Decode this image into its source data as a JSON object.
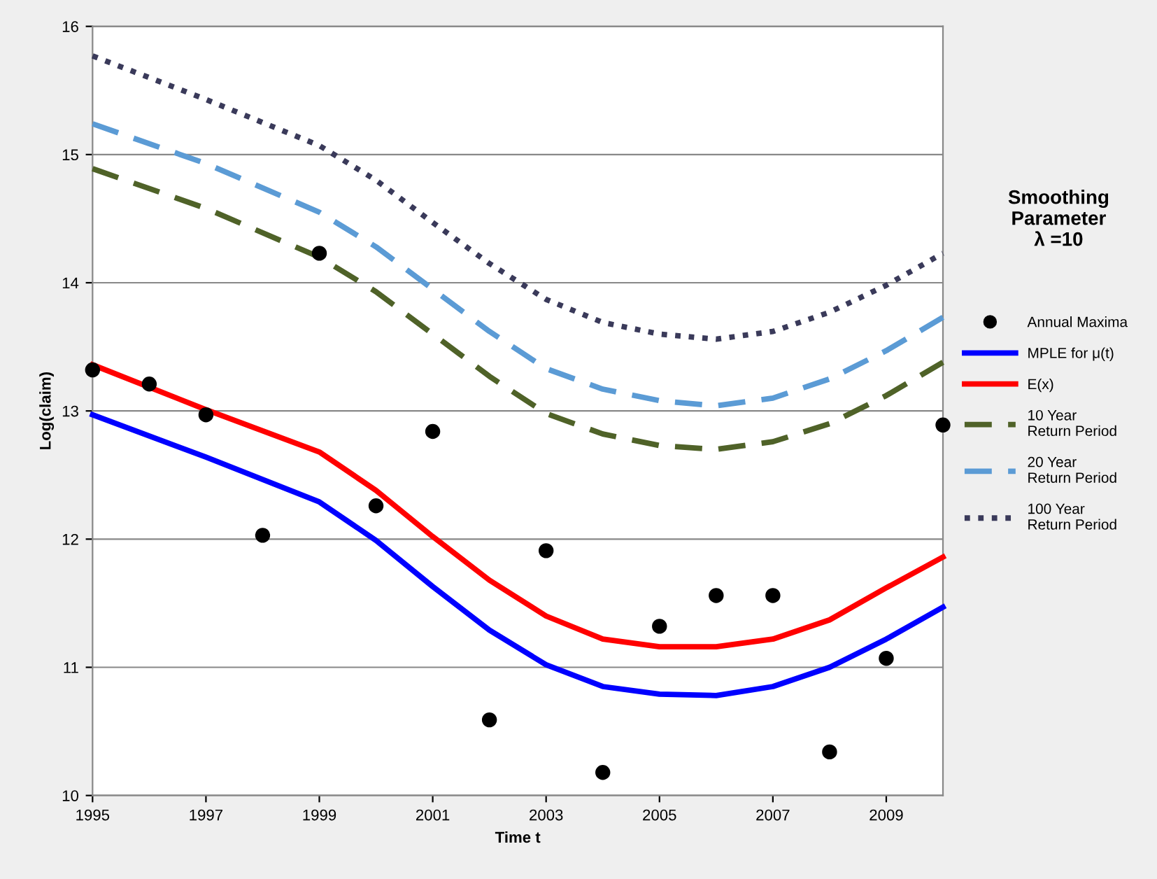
{
  "chart_data": {
    "type": "line",
    "xlabel": "Time t",
    "ylabel": "Log(claim)",
    "annotations": [
      "Smoothing\nParameter\nλ =10"
    ],
    "xlim": [
      1995,
      2010
    ],
    "xticks": [
      1995,
      1997,
      1999,
      2001,
      2003,
      2005,
      2007,
      2009
    ],
    "ylim": [
      10,
      16
    ],
    "yticks": [
      10,
      11,
      12,
      13,
      14,
      15,
      16
    ],
    "grid": "y",
    "legend": "right",
    "series": [
      {
        "name": "Annual Maxima",
        "type": "scatter",
        "marker": "circle",
        "color": "#000000",
        "x": [
          1995,
          1996,
          1997,
          1998,
          1999,
          2000,
          2001,
          2002,
          2003,
          2004,
          2005,
          2006,
          2007,
          2008,
          2009,
          2010
        ],
        "values": [
          13.32,
          13.21,
          12.97,
          12.03,
          14.23,
          12.26,
          12.84,
          10.59,
          11.91,
          10.18,
          11.32,
          11.56,
          11.56,
          10.34,
          11.07,
          12.89
        ]
      },
      {
        "name": "MPLE for μ(t)",
        "line_style": "solid",
        "color": "#0000ff",
        "x": [
          1995,
          1997,
          1999,
          2000,
          2001,
          2002,
          2003,
          2004,
          2005,
          2006,
          2007,
          2008,
          2009,
          2010
        ],
        "values": [
          12.97,
          12.64,
          12.29,
          11.99,
          11.63,
          11.29,
          11.02,
          10.85,
          10.79,
          10.78,
          10.85,
          11.0,
          11.22,
          11.47
        ]
      },
      {
        "name": "E(x)",
        "line_style": "solid",
        "color": "#ff0000",
        "x": [
          1995,
          1997,
          1999,
          2000,
          2001,
          2002,
          2003,
          2004,
          2005,
          2006,
          2007,
          2008,
          2009,
          2010
        ],
        "values": [
          13.36,
          13.01,
          12.68,
          12.38,
          12.02,
          11.68,
          11.4,
          11.22,
          11.16,
          11.16,
          11.22,
          11.37,
          11.62,
          11.86
        ]
      },
      {
        "name": "10 Year Return Period",
        "line_style": "dashed",
        "color": "#4f6228",
        "x": [
          1995,
          1997,
          1999,
          2000,
          2001,
          2002,
          2003,
          2004,
          2005,
          2006,
          2007,
          2008,
          2009,
          2010
        ],
        "values": [
          14.89,
          14.58,
          14.2,
          13.93,
          13.6,
          13.27,
          12.98,
          12.82,
          12.73,
          12.7,
          12.76,
          12.9,
          13.12,
          13.38
        ]
      },
      {
        "name": "20 Year Return Period",
        "line_style": "dashed",
        "color": "#5b9bd5",
        "x": [
          1995,
          1997,
          1999,
          2000,
          2001,
          2002,
          2003,
          2004,
          2005,
          2006,
          2007,
          2008,
          2009,
          2010
        ],
        "values": [
          15.24,
          14.93,
          14.55,
          14.28,
          13.95,
          13.62,
          13.33,
          13.17,
          13.08,
          13.04,
          13.1,
          13.25,
          13.47,
          13.73
        ]
      },
      {
        "name": "100 Year Return Period",
        "line_style": "dotted",
        "color": "#3a3a5a",
        "x": [
          1995,
          1997,
          1999,
          2000,
          2001,
          2002,
          2003,
          2004,
          2005,
          2006,
          2007,
          2008,
          2009,
          2010
        ],
        "values": [
          15.77,
          15.43,
          15.07,
          14.8,
          14.47,
          14.15,
          13.87,
          13.69,
          13.6,
          13.56,
          13.62,
          13.77,
          13.98,
          14.23
        ]
      }
    ]
  }
}
